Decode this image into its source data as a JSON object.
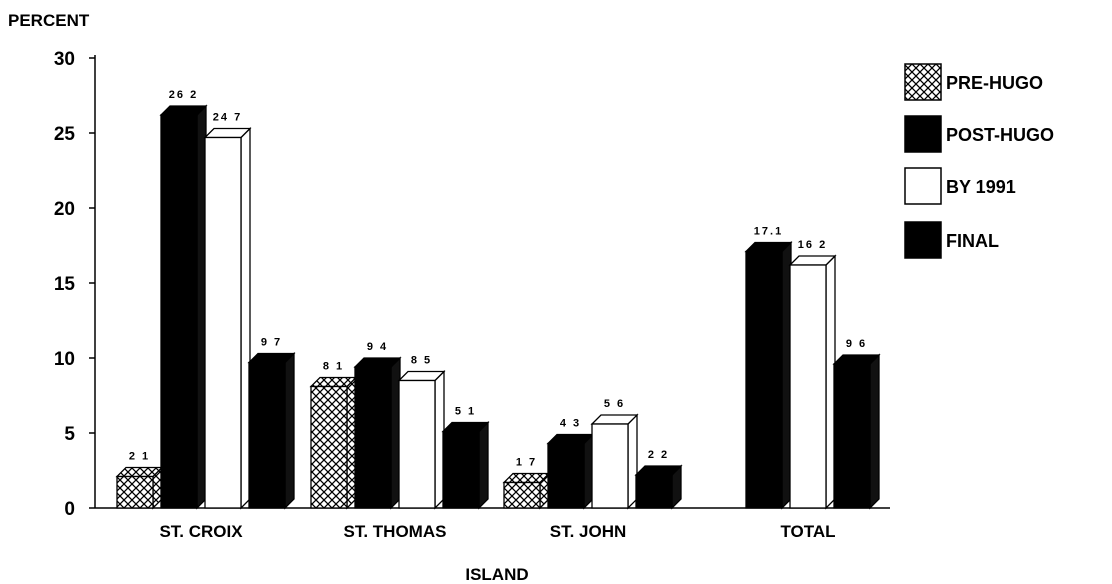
{
  "chart_data": {
    "type": "bar",
    "title": "",
    "ylabel": "PERCENT",
    "xlabel": "ISLAND",
    "ylim": [
      0,
      30
    ],
    "yticks": [
      0,
      5,
      10,
      15,
      20,
      25,
      30
    ],
    "categories": [
      "ST. CROIX",
      "ST. THOMAS",
      "ST. JOHN",
      "TOTAL"
    ],
    "series": [
      {
        "name": "PRE-HUGO",
        "style": "crosshatch",
        "color": "#000000",
        "values": [
          2.1,
          8.1,
          1.7,
          null
        ],
        "labels": [
          "2 1",
          "8 1",
          "1 7",
          ""
        ]
      },
      {
        "name": "POST-HUGO",
        "style": "solid",
        "color": "#000000",
        "values": [
          26.2,
          9.4,
          4.3,
          17.1
        ],
        "labels": [
          "26 2",
          "9 4",
          "4 3",
          "17.1"
        ]
      },
      {
        "name": "BY 1991",
        "style": "hollow",
        "color": "#ffffff",
        "values": [
          24.7,
          8.5,
          5.6,
          16.2
        ],
        "labels": [
          "24 7",
          "8 5",
          "5 6",
          "16 2"
        ]
      },
      {
        "name": "FINAL",
        "style": "solid",
        "color": "#000000",
        "values": [
          9.7,
          5.1,
          2.2,
          9.6
        ],
        "labels": [
          "9 7",
          "5 1",
          "2 2",
          "9 6"
        ]
      }
    ],
    "grid": false,
    "legend": "right"
  }
}
